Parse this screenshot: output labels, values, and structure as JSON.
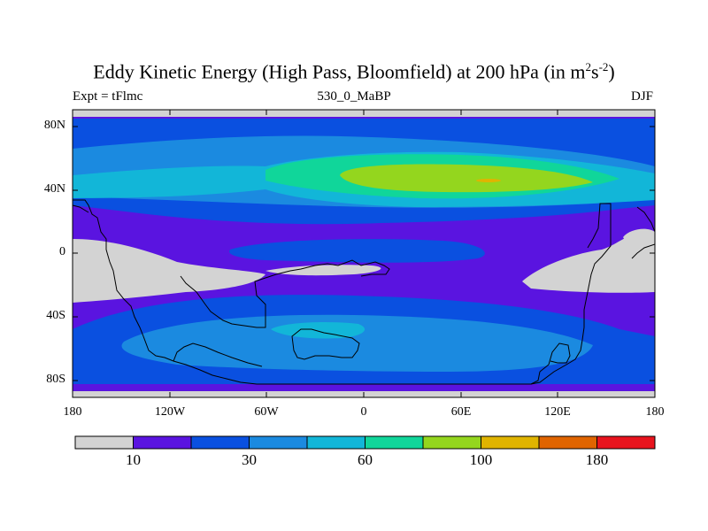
{
  "title": {
    "main": "Eddy Kinetic Energy (High Pass, Bloomfield) at 200 hPa (in m",
    "sup1": "2",
    "mid": "s",
    "sup2": "-2",
    "end": ")"
  },
  "subtitle": {
    "left": "Expt = tFlmc",
    "center": "530_0_MaBP",
    "right": "DJF"
  },
  "axes": {
    "lat_labels": [
      "80N",
      "40N",
      "0",
      "40S",
      "80S"
    ],
    "lon_labels": [
      "180",
      "120W",
      "60W",
      "0",
      "60E",
      "120E",
      "180"
    ]
  },
  "colorbar": {
    "colors": [
      "#d3d3d3",
      "#5a14e0",
      "#0a50e0",
      "#1b8ae0",
      "#12b6d8",
      "#10d69a",
      "#94d61e",
      "#e0b400",
      "#e06400",
      "#e8141e"
    ],
    "labels": [
      {
        "text": "10",
        "boundary": 1
      },
      {
        "text": "30",
        "boundary": 3
      },
      {
        "text": "60",
        "boundary": 5
      },
      {
        "text": "100",
        "boundary": 7
      },
      {
        "text": "180",
        "boundary": 9
      }
    ]
  },
  "colors": {
    "background": "#5a14e0",
    "coastline": "#000000"
  }
}
